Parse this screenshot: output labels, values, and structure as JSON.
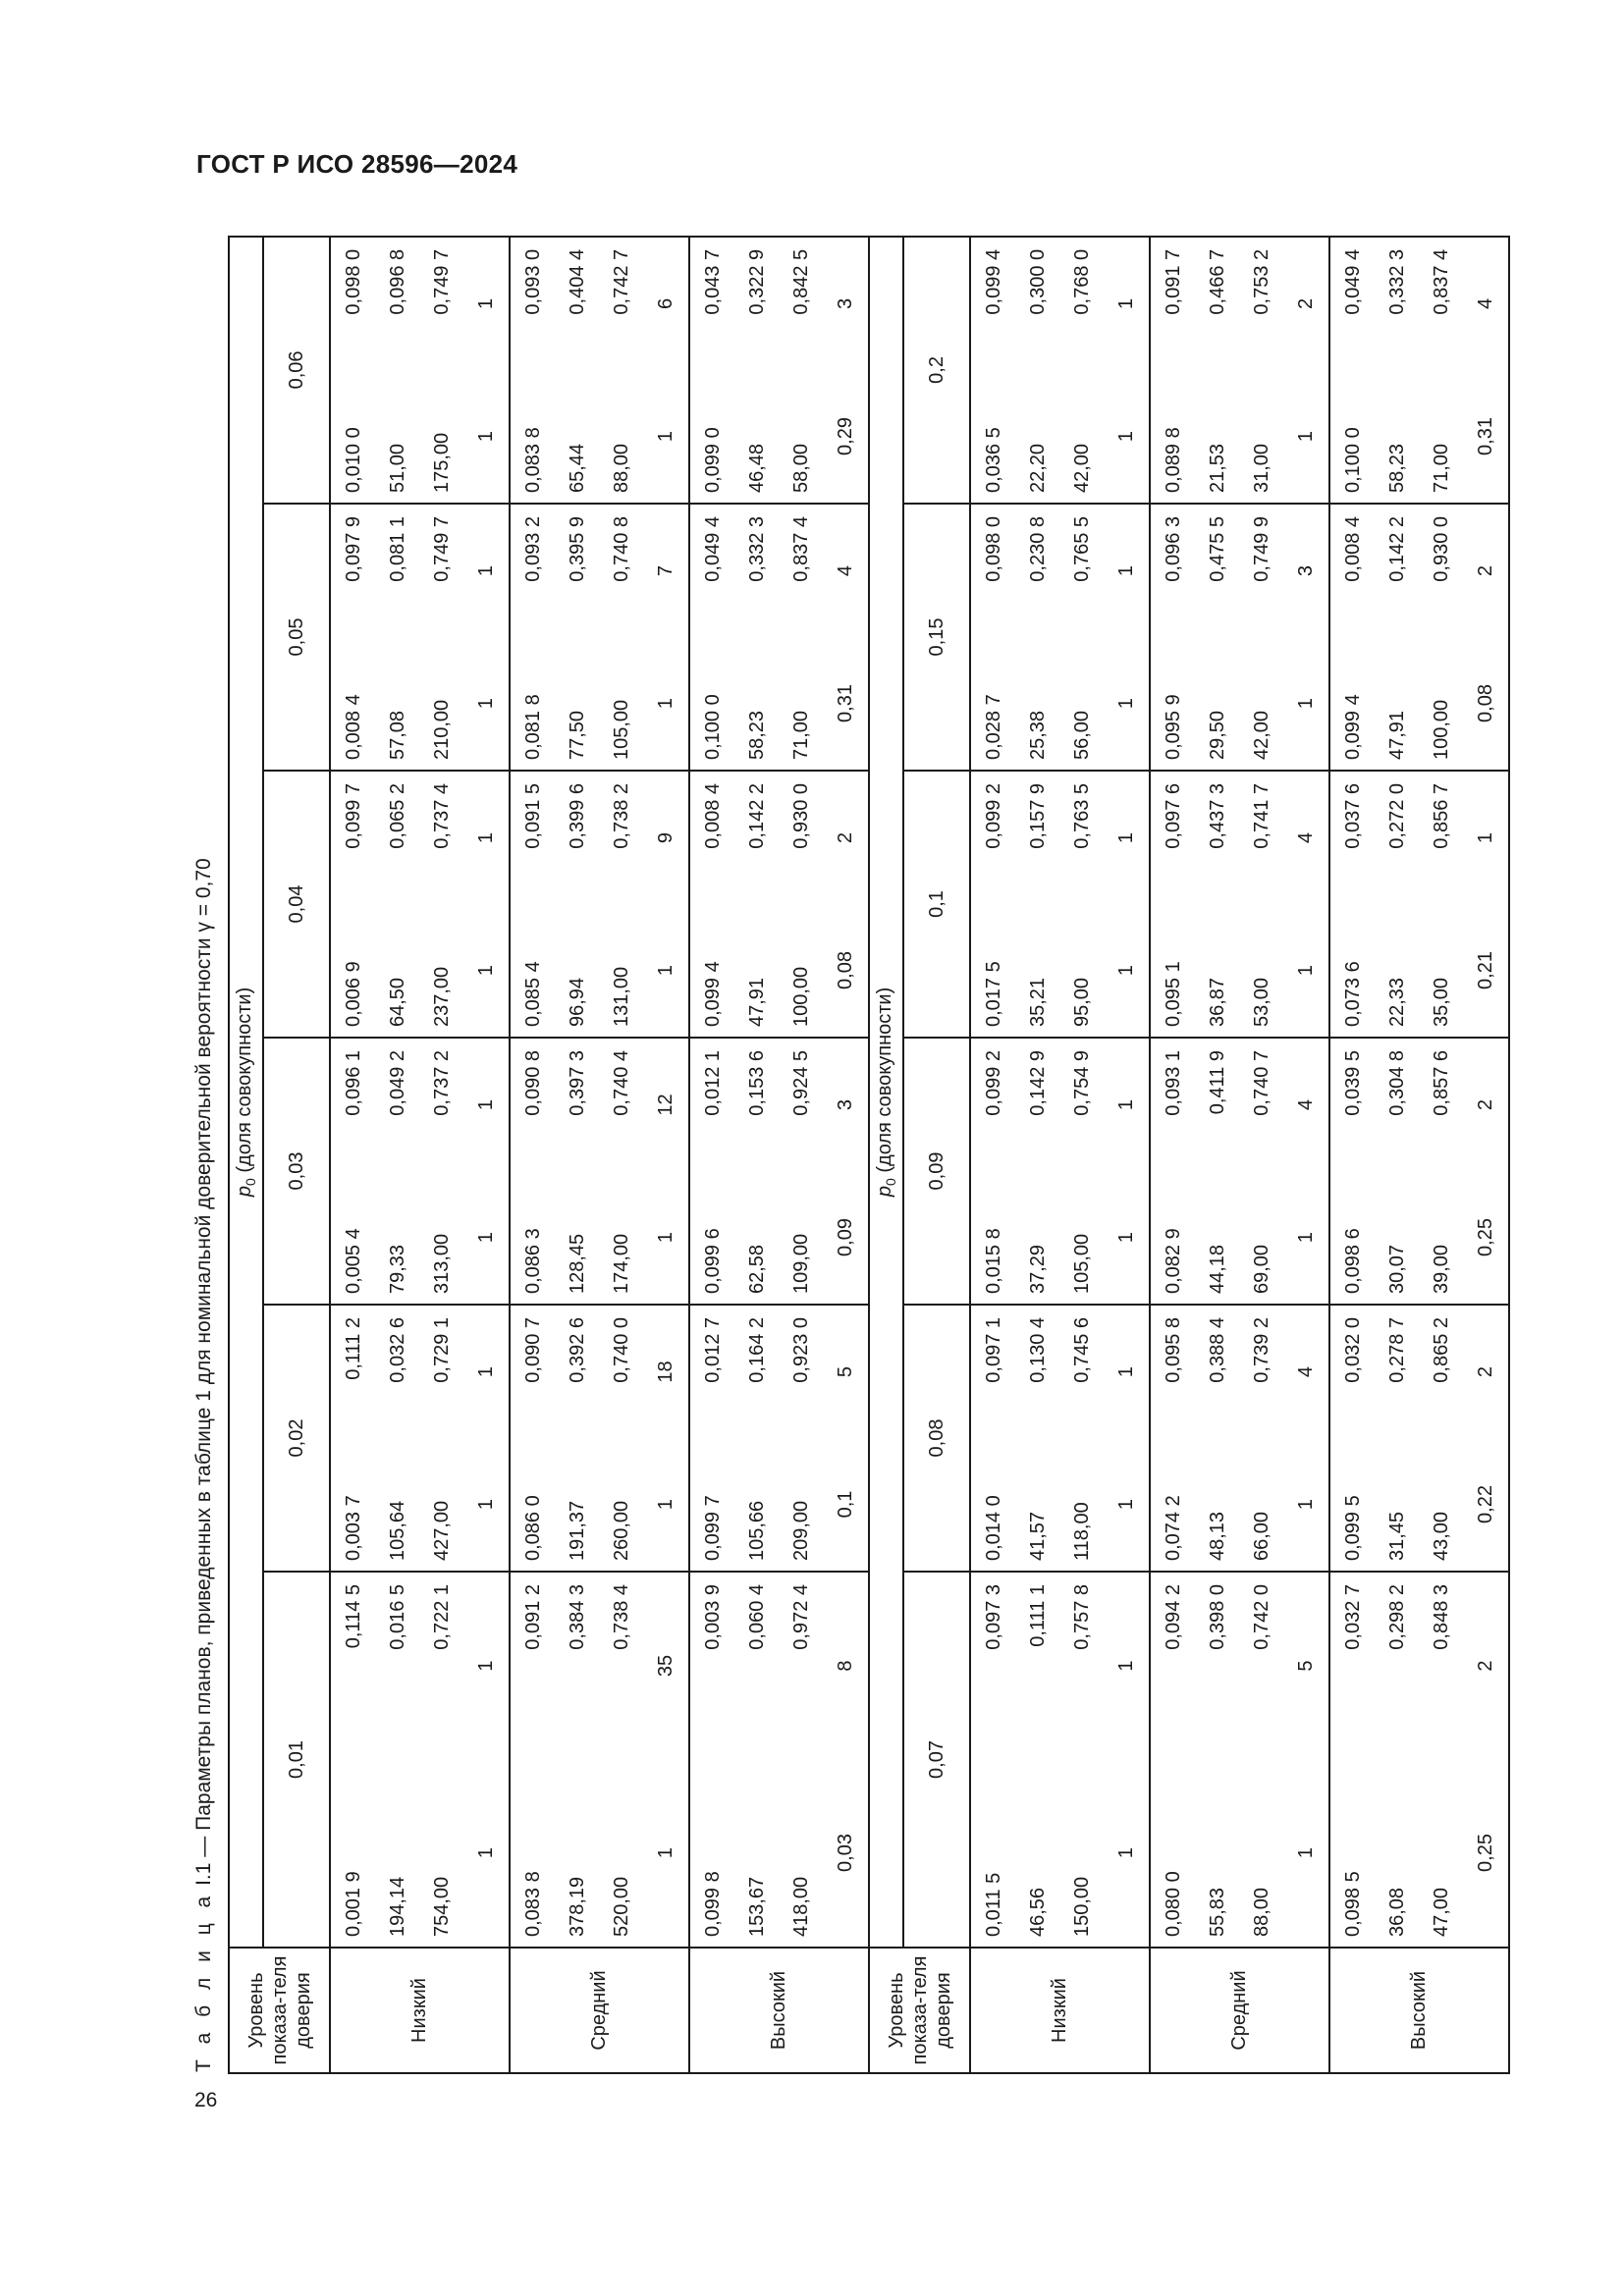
{
  "header": "ГОСТ Р ИСО 28596—2024",
  "page_number": "26",
  "caption": {
    "prefix": "Т а б л и ц а",
    "number": "I.1",
    "text": "— Параметры планов, приведенных в таблице 1 для номинальной доверительной вероятности γ = 0,70"
  },
  "table": {
    "level_header": "Уровень показа-теля доверия",
    "p0_symbol": "p",
    "p0_sub": "0",
    "p0_text": "(доля совокупности)",
    "blocks": [
      {
        "groups": [
          "0,01",
          "0,02",
          "0,03",
          "0,04",
          "0,05",
          "0,06"
        ],
        "rows": [
          {
            "level": "Низкий",
            "cells": [
              [
                "0,001 9",
                "194,14",
                "754,00",
                "1"
              ],
              [
                "0,114 5",
                "0,016 5",
                "0,722 1",
                "1"
              ],
              [
                "0,003 7",
                "105,64",
                "427,00",
                "1"
              ],
              [
                "0,111 2",
                "0,032 6",
                "0,729 1",
                "1"
              ],
              [
                "0,005 4",
                "79,33",
                "313,00",
                "1"
              ],
              [
                "0,096 1",
                "0,049 2",
                "0,737 2",
                "1"
              ],
              [
                "0,006 9",
                "64,50",
                "237,00",
                "1"
              ],
              [
                "0,099 7",
                "0,065 2",
                "0,737 4",
                "1"
              ],
              [
                "0,008 4",
                "57,08",
                "210,00",
                "1"
              ],
              [
                "0,097 9",
                "0,081 1",
                "0,749 7",
                "1"
              ],
              [
                "0,010 0",
                "51,00",
                "175,00",
                "1"
              ],
              [
                "0,098 0",
                "0,096 8",
                "0,749 7",
                "1"
              ]
            ]
          },
          {
            "level": "Средний",
            "cells": [
              [
                "0,083 8",
                "378,19",
                "520,00",
                "1"
              ],
              [
                "0,091 2",
                "0,384 3",
                "0,738 4",
                "35"
              ],
              [
                "0,086 0",
                "191,37",
                "260,00",
                "1"
              ],
              [
                "0,090 7",
                "0,392 6",
                "0,740 0",
                "18"
              ],
              [
                "0,086 3",
                "128,45",
                "174,00",
                "1"
              ],
              [
                "0,090 8",
                "0,397 3",
                "0,740 4",
                "12"
              ],
              [
                "0,085 4",
                "96,94",
                "131,00",
                "1"
              ],
              [
                "0,091 5",
                "0,399 6",
                "0,738 2",
                "9"
              ],
              [
                "0,081 8",
                "77,50",
                "105,00",
                "1"
              ],
              [
                "0,093 2",
                "0,395 9",
                "0,740 8",
                "7"
              ],
              [
                "0,083 8",
                "65,44",
                "88,00",
                "1"
              ],
              [
                "0,093 0",
                "0,404 4",
                "0,742 7",
                "6"
              ]
            ]
          },
          {
            "level": "Высокий",
            "cells": [
              [
                "0,099 8",
                "153,67",
                "418,00",
                "0,03"
              ],
              [
                "0,003 9",
                "0,060 4",
                "0,972 4",
                "8"
              ],
              [
                "0,099 7",
                "105,66",
                "209,00",
                "0,1"
              ],
              [
                "0,012 7",
                "0,164 2",
                "0,923 0",
                "5"
              ],
              [
                "0,099 6",
                "62,58",
                "109,00",
                "0,09"
              ],
              [
                "0,012 1",
                "0,153 6",
                "0,924 5",
                "3"
              ],
              [
                "0,099 4",
                "47,91",
                "100,00",
                "0,08"
              ],
              [
                "0,008 4",
                "0,142 2",
                "0,930 0",
                "2"
              ],
              [
                "0,100 0",
                "58,23",
                "71,00",
                "0,31"
              ],
              [
                "0,049 4",
                "0,332 3",
                "0,837 4",
                "4"
              ],
              [
                "0,099 0",
                "46,48",
                "58,00",
                "0,29"
              ],
              [
                "0,043 7",
                "0,322 9",
                "0,842 5",
                "3"
              ]
            ]
          }
        ]
      },
      {
        "groups": [
          "0,07",
          "0,08",
          "0,09",
          "0,1",
          "0,15",
          "0,2"
        ],
        "rows": [
          {
            "level": "Низкий",
            "cells": [
              [
                "0,011 5",
                "46,56",
                "150,00",
                "1"
              ],
              [
                "0,097 3",
                "0,111 1",
                "0,757 8",
                "1"
              ],
              [
                "0,014 0",
                "41,57",
                "118,00",
                "1"
              ],
              [
                "0,097 1",
                "0,130 4",
                "0,745 6",
                "1"
              ],
              [
                "0,015 8",
                "37,29",
                "105,00",
                "1"
              ],
              [
                "0,099 2",
                "0,142 9",
                "0,754 9",
                "1"
              ],
              [
                "0,017 5",
                "35,21",
                "95,00",
                "1"
              ],
              [
                "0,099 2",
                "0,157 9",
                "0,763 5",
                "1"
              ],
              [
                "0,028 7",
                "25,38",
                "56,00",
                "1"
              ],
              [
                "0,098 0",
                "0,230 8",
                "0,765 5",
                "1"
              ],
              [
                "0,036 5",
                "22,20",
                "42,00",
                "1"
              ],
              [
                "0,099 4",
                "0,300 0",
                "0,768 0",
                "1"
              ]
            ]
          },
          {
            "level": "Средний",
            "cells": [
              [
                "0,080 0",
                "55,83",
                "88,00",
                "1"
              ],
              [
                "0,094 2",
                "0,398 0",
                "0,742 0",
                "5"
              ],
              [
                "0,074 2",
                "48,13",
                "66,00",
                "1"
              ],
              [
                "0,095 8",
                "0,388 4",
                "0,739 2",
                "4"
              ],
              [
                "0,082 9",
                "44,18",
                "69,00",
                "1"
              ],
              [
                "0,093 1",
                "0,411 9",
                "0,740 7",
                "4"
              ],
              [
                "0,095 1",
                "36,87",
                "53,00",
                "1"
              ],
              [
                "0,097 6",
                "0,437 3",
                "0,741 7",
                "4"
              ],
              [
                "0,095 9",
                "29,50",
                "42,00",
                "1"
              ],
              [
                "0,096 3",
                "0,475 5",
                "0,749 9",
                "3"
              ],
              [
                "0,089 8",
                "21,53",
                "31,00",
                "1"
              ],
              [
                "0,091 7",
                "0,466 7",
                "0,753 2",
                "2"
              ]
            ]
          },
          {
            "level": "Высокий",
            "cells": [
              [
                "0,098 5",
                "36,08",
                "47,00",
                "0,25"
              ],
              [
                "0,032 7",
                "0,298 2",
                "0,848 3",
                "2"
              ],
              [
                "0,099 5",
                "31,45",
                "43,00",
                "0,22"
              ],
              [
                "0,032 0",
                "0,278 7",
                "0,865 2",
                "2"
              ],
              [
                "0,098 6",
                "30,07",
                "39,00",
                "0,25"
              ],
              [
                "0,039 5",
                "0,304 8",
                "0,857 6",
                "2"
              ],
              [
                "0,073 6",
                "22,33",
                "35,00",
                "0,21"
              ],
              [
                "0,037 6",
                "0,272 0",
                "0,856 7",
                "1"
              ],
              [
                "0,099 4",
                "47,91",
                "100,00",
                "0,08"
              ],
              [
                "0,008 4",
                "0,142 2",
                "0,930 0",
                "2"
              ],
              [
                "0,100 0",
                "58,23",
                "71,00",
                "0,31"
              ],
              [
                "0,049 4",
                "0,332 3",
                "0,837 4",
                "4"
              ]
            ]
          }
        ]
      }
    ]
  }
}
